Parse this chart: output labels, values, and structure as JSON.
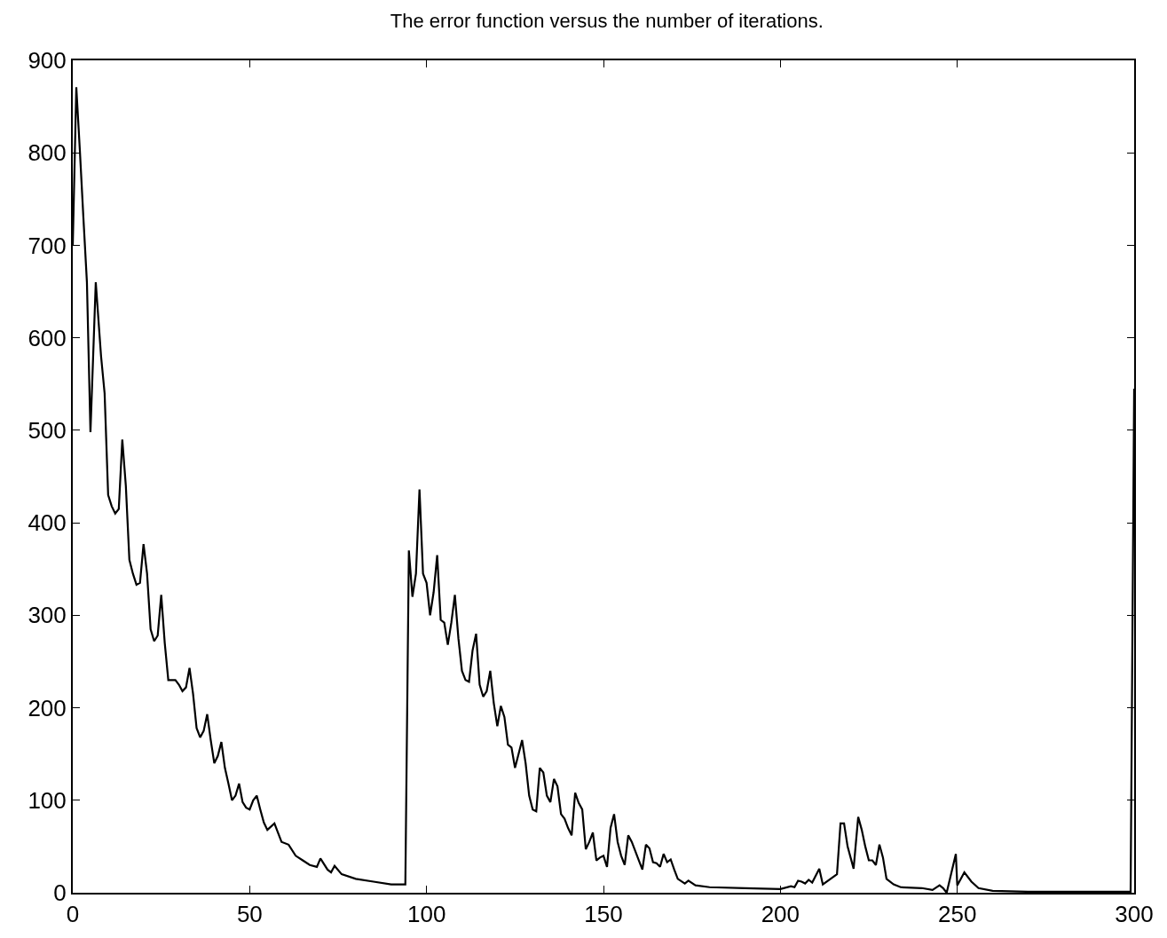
{
  "chart_data": {
    "type": "line",
    "title": "The error function versus the number of iterations.",
    "xlim": [
      0,
      300
    ],
    "ylim": [
      0,
      900
    ],
    "xticks": [
      0,
      50,
      100,
      150,
      200,
      250,
      300
    ],
    "yticks": [
      0,
      100,
      200,
      300,
      400,
      500,
      600,
      700,
      800,
      900
    ],
    "series": [
      {
        "color": "#000000",
        "x": [
          0,
          1,
          2,
          3,
          4,
          5,
          6.5,
          8,
          9,
          10,
          11,
          12,
          13,
          14,
          15,
          16,
          17,
          18,
          19,
          20,
          21,
          22,
          23,
          24,
          25,
          26,
          27,
          29,
          30,
          31,
          32,
          33,
          34,
          35,
          36,
          37,
          38,
          39,
          40,
          41,
          42,
          43,
          44,
          45,
          46,
          47,
          48,
          49,
          50,
          51,
          52,
          53,
          54,
          55,
          57,
          59,
          61,
          63,
          65,
          67,
          69,
          70,
          72,
          73,
          74,
          76,
          80,
          85,
          90,
          94,
          95,
          96,
          97,
          98,
          99,
          100,
          101,
          102,
          103,
          104,
          105,
          106,
          107,
          108,
          109,
          110,
          111,
          112,
          113,
          114,
          115,
          116,
          117,
          118,
          119,
          120,
          121,
          122,
          123,
          124,
          125,
          126,
          127,
          128,
          129,
          130,
          131,
          132,
          133,
          134,
          135,
          136,
          137,
          138,
          139,
          140,
          141,
          142,
          143,
          144,
          145,
          146,
          147,
          148,
          149,
          150,
          151,
          152,
          153,
          154,
          155,
          156,
          157,
          158,
          159,
          160,
          161,
          162,
          163,
          164,
          165,
          166,
          167,
          168,
          169,
          170,
          171,
          173,
          174,
          176,
          180,
          190,
          200,
          203,
          204,
          205,
          206,
          207,
          208,
          209,
          211,
          212,
          216,
          217,
          218,
          219,
          220.7,
          222,
          223,
          224,
          225,
          226,
          227,
          228,
          229,
          230,
          232,
          234,
          240,
          243,
          245,
          246,
          247,
          249.6,
          250,
          252,
          254,
          256,
          260,
          270,
          299,
          300
        ],
        "values": [
          700,
          871,
          803,
          730,
          660,
          498,
          660,
          580,
          540,
          430,
          418,
          410,
          415,
          490,
          440,
          360,
          345,
          333,
          335,
          377,
          345,
          285,
          272,
          278,
          322,
          270,
          230,
          230,
          225,
          218,
          222,
          243,
          215,
          178,
          168,
          175,
          193,
          165,
          140,
          148,
          163,
          135,
          118,
          100,
          105,
          118,
          98,
          92,
          90,
          100,
          105,
          90,
          76,
          68,
          75,
          55,
          52,
          40,
          35,
          30,
          28,
          37,
          25,
          22,
          29,
          20,
          15,
          12,
          9,
          9,
          370,
          320,
          345,
          436,
          345,
          335,
          300,
          325,
          365,
          295,
          292,
          268,
          292,
          322,
          275,
          240,
          230,
          228,
          262,
          280,
          225,
          212,
          218,
          240,
          205,
          180,
          202,
          190,
          160,
          157,
          135,
          150,
          165,
          140,
          105,
          90,
          88,
          135,
          130,
          105,
          98,
          123,
          115,
          85,
          80,
          70,
          62,
          108,
          97,
          90,
          47,
          55,
          65,
          35,
          38,
          40,
          28,
          70,
          85,
          55,
          40,
          30,
          62,
          55,
          45,
          35,
          25,
          52,
          48,
          33,
          32,
          28,
          42,
          33,
          36,
          25,
          15,
          10,
          13,
          8,
          6,
          5,
          4,
          7,
          6,
          13,
          12,
          10,
          14,
          11,
          26,
          9,
          20,
          75,
          75,
          50,
          26,
          82,
          68,
          50,
          35,
          35,
          30,
          52,
          38,
          15,
          9,
          6,
          5,
          3,
          8,
          5,
          0,
          42,
          8,
          22,
          12,
          5,
          2,
          1,
          1,
          545
        ]
      }
    ]
  }
}
